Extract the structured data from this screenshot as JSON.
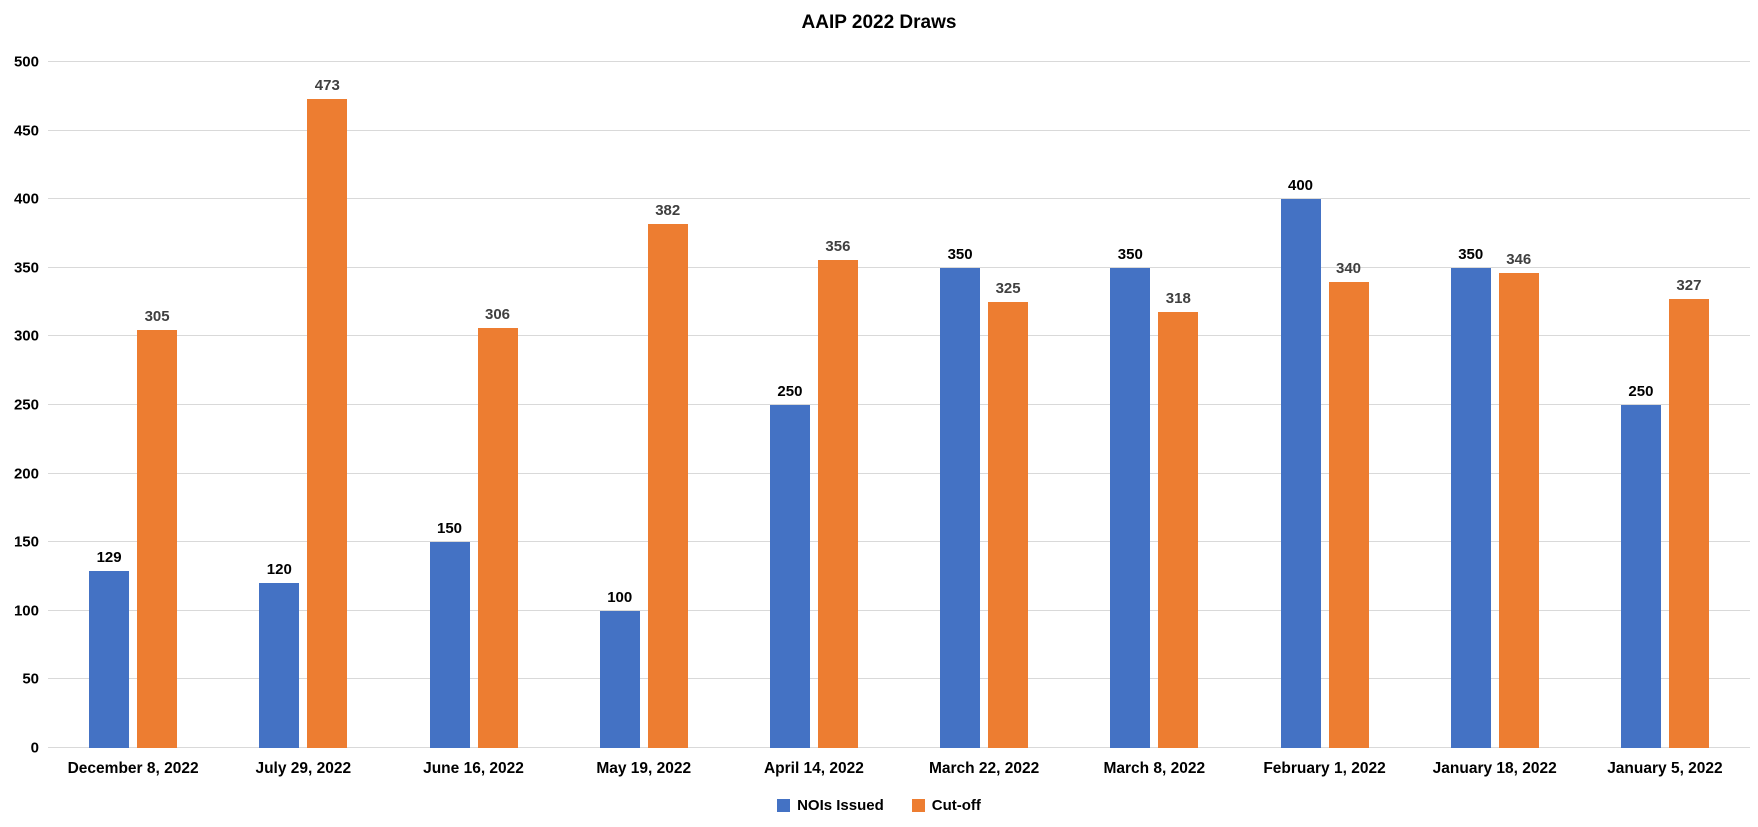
{
  "chart_data": {
    "type": "bar",
    "title": "AAIP 2022 Draws",
    "categories": [
      "December 8, 2022",
      "July 29, 2022",
      "June 16, 2022",
      "May 19, 2022",
      "April 14, 2022",
      "March 22, 2022",
      "March 8, 2022",
      "February 1, 2022",
      "January 18, 2022",
      "January 5, 2022"
    ],
    "series": [
      {
        "name": "NOIs Issued",
        "color": "#4472C4",
        "label_color": "#000000",
        "values": [
          129,
          120,
          150,
          100,
          250,
          350,
          350,
          400,
          350,
          250
        ]
      },
      {
        "name": "Cut-off",
        "color": "#ED7D31",
        "label_color": "#404040",
        "values": [
          305,
          473,
          306,
          382,
          356,
          325,
          318,
          340,
          346,
          327
        ]
      }
    ],
    "xlabel": "",
    "ylabel": "",
    "ylim": [
      0,
      500
    ],
    "yticks": [
      0,
      50,
      100,
      150,
      200,
      250,
      300,
      350,
      400,
      450,
      500
    ],
    "grid": true,
    "gridline_color": "#D9D9D9",
    "legend_position": "bottom",
    "background_color": "#FFFFFF"
  }
}
